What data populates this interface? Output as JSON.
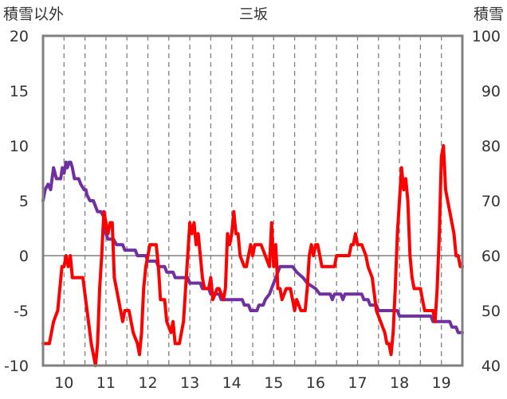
{
  "chart_data": {
    "type": "line",
    "title": "三坂",
    "left_axis_label": "積雪以外",
    "right_axis_label": "積雪",
    "left_ylim": [
      -10,
      20
    ],
    "left_yticks": [
      -10,
      -5,
      0,
      5,
      10,
      15,
      20
    ],
    "right_ylim": [
      40,
      100
    ],
    "right_yticks": [
      40,
      50,
      60,
      70,
      80,
      90,
      100
    ],
    "xlim": [
      9.5,
      19.5
    ],
    "x_tick_labels": [
      "10",
      "11",
      "12",
      "13",
      "14",
      "15",
      "16",
      "17",
      "18",
      "19"
    ],
    "x_tick_values": [
      10,
      11,
      12,
      13,
      14,
      15,
      16,
      17,
      18,
      19
    ],
    "grid": "vertical dashed at each tick and half-tick, horizontal at 0",
    "colors": {
      "temperature": "#ff0000",
      "snow_depth": "#7030a0",
      "grid": "#808080",
      "frame": "#808080"
    },
    "series": [
      {
        "axis": "left",
        "color": "#ff0000",
        "points": [
          [
            9.5,
            -8
          ],
          [
            9.65,
            -8
          ],
          [
            9.75,
            -6
          ],
          [
            9.85,
            -5
          ],
          [
            9.95,
            -1
          ],
          [
            10.0,
            -1
          ],
          [
            10.05,
            0
          ],
          [
            10.1,
            -1
          ],
          [
            10.15,
            0
          ],
          [
            10.2,
            -2
          ],
          [
            10.35,
            -2
          ],
          [
            10.45,
            -2
          ],
          [
            10.55,
            -5
          ],
          [
            10.65,
            -8
          ],
          [
            10.75,
            -10
          ],
          [
            10.8,
            -8
          ],
          [
            10.85,
            -3
          ],
          [
            10.9,
            0
          ],
          [
            10.95,
            4
          ],
          [
            11.0,
            3
          ],
          [
            11.05,
            2
          ],
          [
            11.1,
            3
          ],
          [
            11.15,
            3
          ],
          [
            11.2,
            -2
          ],
          [
            11.3,
            -4
          ],
          [
            11.35,
            -5
          ],
          [
            11.4,
            -6
          ],
          [
            11.45,
            -5
          ],
          [
            11.55,
            -5
          ],
          [
            11.65,
            -7
          ],
          [
            11.75,
            -8
          ],
          [
            11.8,
            -9
          ],
          [
            11.85,
            -7
          ],
          [
            11.9,
            -3
          ],
          [
            11.95,
            -1
          ],
          [
            12.0,
            0
          ],
          [
            12.05,
            1
          ],
          [
            12.1,
            1
          ],
          [
            12.2,
            1
          ],
          [
            12.25,
            -1
          ],
          [
            12.3,
            -4
          ],
          [
            12.4,
            -4
          ],
          [
            12.45,
            -6
          ],
          [
            12.55,
            -7
          ],
          [
            12.6,
            -6
          ],
          [
            12.65,
            -8
          ],
          [
            12.75,
            -8
          ],
          [
            12.85,
            -6
          ],
          [
            12.9,
            -3
          ],
          [
            12.95,
            0
          ],
          [
            13.0,
            3
          ],
          [
            13.05,
            2
          ],
          [
            13.1,
            3
          ],
          [
            13.15,
            1
          ],
          [
            13.2,
            2
          ],
          [
            13.25,
            0
          ],
          [
            13.3,
            -2
          ],
          [
            13.35,
            -3
          ],
          [
            13.45,
            -3
          ],
          [
            13.5,
            -2
          ],
          [
            13.55,
            -4
          ],
          [
            13.65,
            -3
          ],
          [
            13.7,
            -3
          ],
          [
            13.8,
            -4
          ],
          [
            13.85,
            -3
          ],
          [
            13.9,
            2
          ],
          [
            13.95,
            1
          ],
          [
            14.0,
            2
          ],
          [
            14.05,
            4
          ],
          [
            14.1,
            2
          ],
          [
            14.15,
            2
          ],
          [
            14.2,
            0
          ],
          [
            14.3,
            -1
          ],
          [
            14.35,
            -1
          ],
          [
            14.4,
            0
          ],
          [
            14.45,
            1
          ],
          [
            14.5,
            0
          ],
          [
            14.55,
            1
          ],
          [
            14.7,
            1
          ],
          [
            14.8,
            0
          ],
          [
            14.9,
            -1
          ],
          [
            14.95,
            3
          ],
          [
            15.0,
            -1
          ],
          [
            15.05,
            1
          ],
          [
            15.1,
            -3
          ],
          [
            15.15,
            -3
          ],
          [
            15.2,
            -4
          ],
          [
            15.3,
            -3
          ],
          [
            15.4,
            -3
          ],
          [
            15.45,
            -4
          ],
          [
            15.5,
            -5
          ],
          [
            15.55,
            -4
          ],
          [
            15.65,
            -5
          ],
          [
            15.75,
            -5
          ],
          [
            15.8,
            -3
          ],
          [
            15.85,
            0
          ],
          [
            15.9,
            1
          ],
          [
            15.95,
            0
          ],
          [
            16.0,
            1
          ],
          [
            16.05,
            1
          ],
          [
            16.1,
            0
          ],
          [
            16.15,
            -1
          ],
          [
            16.3,
            -1
          ],
          [
            16.45,
            -1
          ],
          [
            16.5,
            0
          ],
          [
            16.7,
            0
          ],
          [
            16.8,
            0
          ],
          [
            16.85,
            1
          ],
          [
            16.9,
            1
          ],
          [
            16.95,
            2
          ],
          [
            17.0,
            1
          ],
          [
            17.1,
            1
          ],
          [
            17.2,
            0
          ],
          [
            17.25,
            -1
          ],
          [
            17.35,
            -2
          ],
          [
            17.45,
            -5
          ],
          [
            17.55,
            -6
          ],
          [
            17.65,
            -7
          ],
          [
            17.7,
            -8
          ],
          [
            17.75,
            -8
          ],
          [
            17.8,
            -9
          ],
          [
            17.85,
            -7
          ],
          [
            17.9,
            -3
          ],
          [
            17.95,
            2
          ],
          [
            18.0,
            5
          ],
          [
            18.05,
            8
          ],
          [
            18.1,
            6
          ],
          [
            18.15,
            7
          ],
          [
            18.2,
            5
          ],
          [
            18.25,
            0
          ],
          [
            18.3,
            -2
          ],
          [
            18.35,
            -3
          ],
          [
            18.4,
            -3
          ],
          [
            18.5,
            -3
          ],
          [
            18.55,
            -4
          ],
          [
            18.6,
            -5
          ],
          [
            18.7,
            -5
          ],
          [
            18.8,
            -5
          ],
          [
            18.85,
            -6
          ],
          [
            18.9,
            -3
          ],
          [
            18.95,
            2
          ],
          [
            19.0,
            9
          ],
          [
            19.05,
            10
          ],
          [
            19.1,
            6
          ],
          [
            19.15,
            5
          ],
          [
            19.2,
            4
          ],
          [
            19.3,
            2
          ],
          [
            19.35,
            0
          ],
          [
            19.4,
            0
          ],
          [
            19.45,
            -1
          ],
          [
            19.5,
            -1
          ]
        ]
      },
      {
        "axis": "right",
        "color": "#7030a0",
        "points": [
          [
            9.5,
            70
          ],
          [
            9.55,
            72
          ],
          [
            9.62,
            73
          ],
          [
            9.68,
            72
          ],
          [
            9.75,
            76
          ],
          [
            9.82,
            74
          ],
          [
            9.92,
            74
          ],
          [
            9.96,
            76
          ],
          [
            10.0,
            75
          ],
          [
            10.05,
            77
          ],
          [
            10.08,
            76
          ],
          [
            10.12,
            77
          ],
          [
            10.16,
            77
          ],
          [
            10.2,
            76
          ],
          [
            10.25,
            74
          ],
          [
            10.35,
            74
          ],
          [
            10.4,
            73
          ],
          [
            10.48,
            72
          ],
          [
            10.52,
            72
          ],
          [
            10.55,
            71
          ],
          [
            10.62,
            70
          ],
          [
            10.7,
            70
          ],
          [
            10.8,
            68
          ],
          [
            10.88,
            68
          ],
          [
            10.95,
            67
          ],
          [
            11.0,
            64
          ],
          [
            11.05,
            63
          ],
          [
            11.18,
            63
          ],
          [
            11.25,
            62
          ],
          [
            11.4,
            62
          ],
          [
            11.45,
            61
          ],
          [
            11.7,
            61
          ],
          [
            11.75,
            60
          ],
          [
            11.95,
            60
          ],
          [
            12.0,
            59
          ],
          [
            12.2,
            59
          ],
          [
            12.25,
            58
          ],
          [
            12.4,
            58
          ],
          [
            12.45,
            57
          ],
          [
            12.6,
            57
          ],
          [
            12.65,
            56
          ],
          [
            12.95,
            56
          ],
          [
            13.0,
            55
          ],
          [
            13.25,
            55
          ],
          [
            13.3,
            54
          ],
          [
            13.45,
            54
          ],
          [
            13.5,
            53
          ],
          [
            13.7,
            53
          ],
          [
            13.75,
            52
          ],
          [
            14.25,
            52
          ],
          [
            14.3,
            51
          ],
          [
            14.4,
            51
          ],
          [
            14.45,
            50
          ],
          [
            14.6,
            50
          ],
          [
            14.65,
            51
          ],
          [
            14.75,
            51
          ],
          [
            14.8,
            52
          ],
          [
            14.9,
            53
          ],
          [
            15.0,
            55
          ],
          [
            15.05,
            56
          ],
          [
            15.1,
            57
          ],
          [
            15.15,
            58
          ],
          [
            15.45,
            58
          ],
          [
            15.55,
            57
          ],
          [
            15.7,
            56
          ],
          [
            15.8,
            55
          ],
          [
            16.0,
            54
          ],
          [
            16.1,
            53
          ],
          [
            16.35,
            53
          ],
          [
            16.4,
            52
          ],
          [
            16.45,
            53
          ],
          [
            16.6,
            53
          ],
          [
            16.65,
            52
          ],
          [
            16.7,
            53
          ],
          [
            17.1,
            53
          ],
          [
            17.15,
            52
          ],
          [
            17.25,
            52
          ],
          [
            17.3,
            51
          ],
          [
            17.45,
            51
          ],
          [
            17.5,
            50
          ],
          [
            17.95,
            50
          ],
          [
            18.0,
            49
          ],
          [
            18.75,
            49
          ],
          [
            18.8,
            48
          ],
          [
            19.2,
            48
          ],
          [
            19.25,
            47
          ],
          [
            19.35,
            47
          ],
          [
            19.4,
            46
          ],
          [
            19.5,
            46
          ]
        ]
      }
    ]
  }
}
